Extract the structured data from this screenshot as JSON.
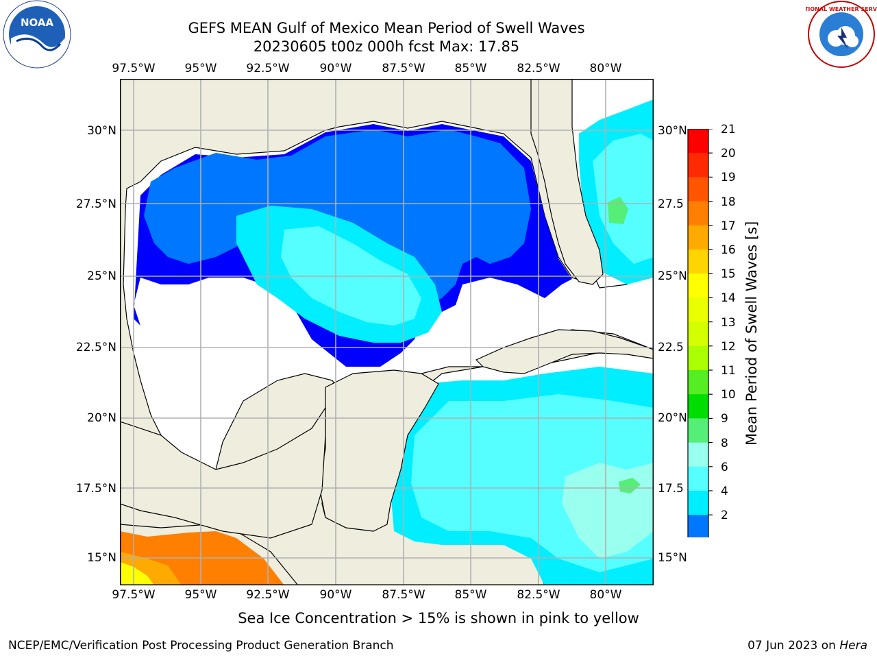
{
  "header": {
    "title_line1": "GEFS MEAN Gulf of Mexico Mean Period of Swell Waves",
    "title_line2": "20230605 t00z 000h fcst   Max: 17.85"
  },
  "map": {
    "lon_labels": [
      "97.5°W",
      "95°W",
      "92.5°W",
      "90°W",
      "87.5°W",
      "85°W",
      "82.5°W",
      "80°W"
    ],
    "lat_labels_left": [
      "30°N",
      "27.5°N",
      "25°N",
      "22.5°N",
      "20°N",
      "17.5°N",
      "15°N"
    ],
    "lat_labels_right": [
      "30°N",
      "27.5",
      "25°N",
      "22.5",
      "20°N",
      "17.5",
      "15°N"
    ],
    "land_color": "#eeedde",
    "grid_color": "#b0b0b0",
    "region": "Gulf of Mexico"
  },
  "colorbar": {
    "label": "Mean Period of Swell Waves [s]",
    "ticks": [
      "21",
      "20",
      "19",
      "18",
      "17",
      "16",
      "15",
      "14",
      "13",
      "12",
      "11",
      "10",
      "9",
      "8",
      "6",
      "4",
      "2"
    ],
    "colors": [
      "#ff0000",
      "#ff2a00",
      "#ff5500",
      "#ff7f00",
      "#ffaa00",
      "#ffd400",
      "#ffff00",
      "#eaff00",
      "#d4ff00",
      "#aaff00",
      "#55ee22",
      "#00dd00",
      "#55ee77",
      "#99ffee",
      "#55ffff",
      "#00eeff",
      "#0077ff",
      "#0000ff"
    ]
  },
  "logos": {
    "noaa_text": "NOAA",
    "nws_text": "NATIONAL WEATHER SERVICE"
  },
  "footer": {
    "note": "Sea Ice Concentration > 15% is shown in pink to yellow",
    "left": "NCEP/EMC/Verification Post Processing Product Generation Branch",
    "right_date": "07 Jun 2023 on ",
    "right_host": "Hera"
  }
}
